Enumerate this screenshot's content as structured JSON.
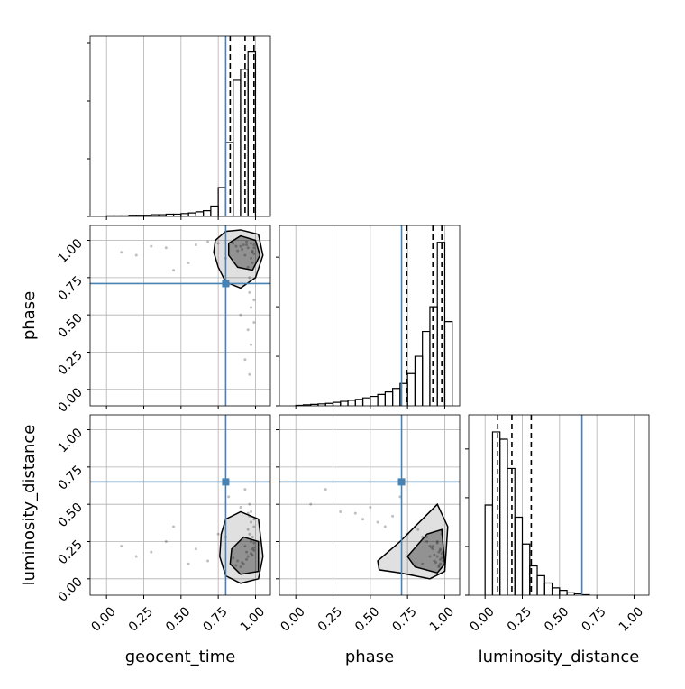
{
  "chart_data": {
    "type": "corner",
    "parameters": [
      "geocent_time",
      "phase",
      "luminosity_distance"
    ],
    "truths": [
      0.8,
      0.71,
      0.65
    ],
    "truth_color": "#4682b4",
    "quantiles": [
      [
        0.83,
        0.93,
        0.99
      ],
      [
        0.745,
        0.92,
        0.98
      ],
      [
        0.085,
        0.18,
        0.31
      ]
    ],
    "lim": [
      -0.11,
      1.1
    ],
    "ticks": [
      {
        "value": 0,
        "label": "0.00"
      },
      {
        "value": 0.25,
        "label": "0.25"
      },
      {
        "value": 0.5,
        "label": "0.50"
      },
      {
        "value": 0.75,
        "label": "0.75"
      },
      {
        "value": 1,
        "label": "1.00"
      }
    ],
    "grid": true,
    "histograms": [
      {
        "bins": [
          0,
          0.05,
          0.1,
          0.15,
          0.2,
          0.25,
          0.3,
          0.35,
          0.4,
          0.45,
          0.5,
          0.55,
          0.6,
          0.65,
          0.7,
          0.75,
          0.8,
          0.85,
          0.9,
          0.95,
          1.0
        ],
        "values": [
          0.01,
          0.01,
          0.01,
          0.02,
          0.02,
          0.02,
          0.03,
          0.03,
          0.04,
          0.04,
          0.05,
          0.06,
          0.08,
          0.1,
          0.18,
          0.5,
          1.28,
          2.36,
          2.55,
          2.85
        ],
        "ylim": [
          0,
          3.125
        ],
        "yticks": [
          0,
          1,
          2,
          3
        ]
      },
      {
        "bins": [
          0,
          0.05,
          0.1,
          0.15,
          0.2,
          0.25,
          0.3,
          0.35,
          0.4,
          0.45,
          0.5,
          0.55,
          0.6,
          0.65,
          0.7,
          0.75,
          0.8,
          0.85,
          0.9,
          0.95,
          1.0,
          1.05
        ],
        "values": [
          0.01,
          0.02,
          0.03,
          0.04,
          0.05,
          0.07,
          0.09,
          0.11,
          0.13,
          0.16,
          0.19,
          0.23,
          0.28,
          0.35,
          0.45,
          0.65,
          1.0,
          1.5,
          2.0,
          3.3,
          1.7
        ],
        "ylim": [
          0,
          3.64
        ],
        "yticks": [
          0,
          1,
          2,
          3
        ]
      },
      {
        "bins": [
          0,
          0.05,
          0.1,
          0.15,
          0.2,
          0.25,
          0.3,
          0.35,
          0.4,
          0.45,
          0.5,
          0.55,
          0.6,
          0.65,
          0.7
        ],
        "values": [
          1.85,
          3.35,
          3.2,
          2.6,
          1.6,
          1.05,
          0.6,
          0.4,
          0.25,
          0.15,
          0.1,
          0.05,
          0.03,
          0.01
        ],
        "ylim": [
          0,
          3.7
        ],
        "yticks": [
          0,
          1,
          2,
          3
        ]
      }
    ],
    "samples": [
      [
        0.95,
        0.98,
        0.92,
        0.97,
        0.99,
        0.88,
        0.94,
        0.96,
        0.9,
        0.99,
        0.97,
        0.93,
        0.85,
        0.98,
        0.96,
        0.91,
        0.99,
        0.95,
        0.87,
        0.97,
        0.6,
        0.4,
        0.2,
        0.75,
        0.55,
        0.3,
        0.82,
        0.1,
        0.68,
        0.45,
        0.98,
        0.96,
        0.94,
        0.99,
        0.9,
        0.97,
        0.93,
        0.99,
        0.8,
        0.95
      ],
      [
        0.95,
        0.92,
        0.97,
        0.88,
        0.6,
        0.93,
        0.99,
        0.75,
        0.96,
        0.45,
        0.3,
        0.9,
        0.98,
        0.85,
        0.1,
        0.94,
        0.97,
        0.82,
        0.96,
        0.55,
        0.97,
        0.95,
        0.9,
        0.98,
        0.85,
        0.96,
        0.7,
        0.92,
        0.99,
        0.8,
        0.93,
        0.65,
        0.97,
        0.91,
        0.5,
        0.98,
        0.2,
        0.95,
        0.88,
        0.4
      ],
      [
        0.15,
        0.2,
        0.1,
        0.25,
        0.35,
        0.12,
        0.18,
        0.3,
        0.08,
        0.4,
        0.45,
        0.22,
        0.14,
        0.28,
        0.5,
        0.11,
        0.19,
        0.33,
        0.09,
        0.38,
        0.2,
        0.25,
        0.15,
        0.3,
        0.1,
        0.18,
        0.55,
        0.22,
        0.12,
        0.35,
        0.16,
        0.42,
        0.13,
        0.21,
        0.48,
        0.17,
        0.6,
        0.24,
        0.28,
        0.44
      ]
    ],
    "contours": [
      [
        {
          "x": [
            0.73,
            0.8,
            0.9,
            1.02,
            1.05,
            1.0,
            0.9,
            0.8,
            0.75,
            0.72
          ],
          "y": [
            1.0,
            1.06,
            1.07,
            1.04,
            0.9,
            0.75,
            0.68,
            0.72,
            0.82,
            0.92
          ]
        },
        {
          "x": [
            0.82,
            0.9,
            1.0,
            1.03,
            0.98,
            0.88,
            0.82
          ],
          "y": [
            0.98,
            1.03,
            1.0,
            0.9,
            0.8,
            0.82,
            0.9
          ]
        }
      ],
      [
        {
          "x": [
            0.77,
            0.8,
            0.9,
            1.02,
            1.05,
            1.02,
            0.9,
            0.8,
            0.76
          ],
          "y": [
            0.3,
            0.4,
            0.45,
            0.4,
            0.15,
            0.0,
            -0.03,
            0.02,
            0.15
          ]
        },
        {
          "x": [
            0.84,
            0.92,
            1.02,
            1.02,
            0.9,
            0.83
          ],
          "y": [
            0.2,
            0.28,
            0.25,
            0.05,
            0.03,
            0.1
          ]
        }
      ],
      [
        {
          "x": [
            0.55,
            0.7,
            0.85,
            0.95,
            1.02,
            1.0,
            0.9,
            0.7,
            0.56
          ],
          "y": [
            0.12,
            0.25,
            0.4,
            0.5,
            0.35,
            0.05,
            0.0,
            0.04,
            0.06
          ]
        },
        {
          "x": [
            0.75,
            0.88,
            0.98,
            1.0,
            0.95,
            0.8
          ],
          "y": [
            0.15,
            0.3,
            0.33,
            0.1,
            0.04,
            0.08
          ]
        }
      ]
    ]
  }
}
